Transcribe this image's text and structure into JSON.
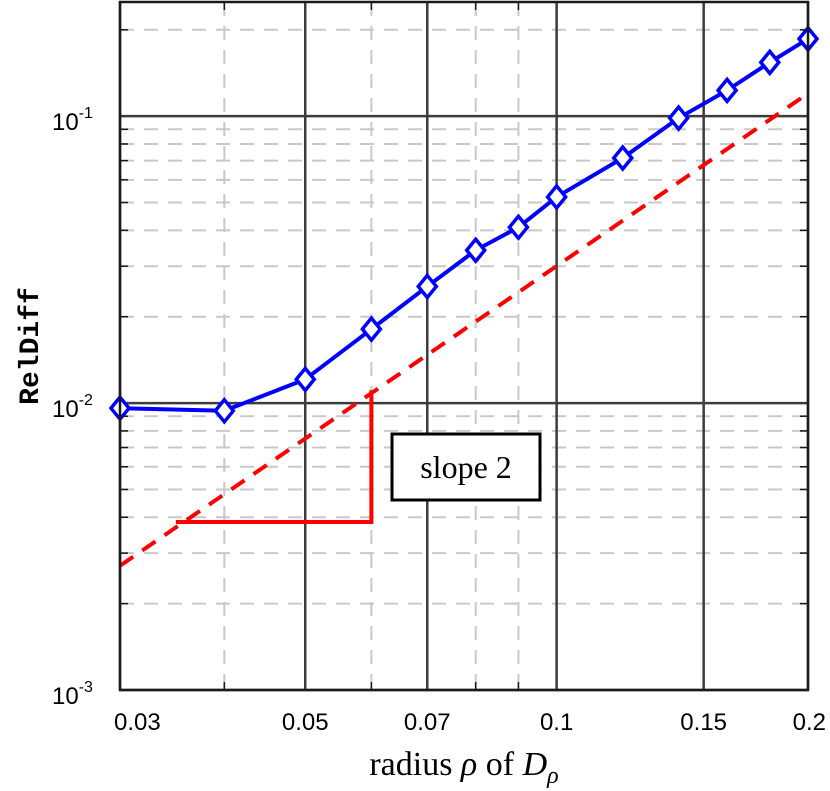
{
  "chart_data": {
    "type": "line",
    "x_scale": "log",
    "y_scale": "log",
    "xlim": [
      0.03,
      0.2
    ],
    "ylim": [
      0.001,
      0.25
    ],
    "grid": true,
    "xlabel_prefix": "radius ",
    "xlabel_rho": "ρ",
    "xlabel_mid": " of ",
    "xlabel_D": "D",
    "xlabel_sub": "ρ",
    "ylabel": "RelDiff",
    "x_ticks": [
      0.03,
      0.05,
      0.07,
      0.1,
      0.15,
      0.2
    ],
    "x_tick_labels": [
      "0.03",
      "0.05",
      "0.07",
      "0.1",
      "0.15",
      "0.2"
    ],
    "y_ticks": [
      0.001,
      0.01,
      0.1
    ],
    "y_tick_base": "10",
    "y_tick_exponents": [
      "-3",
      "-2",
      "-1"
    ],
    "series": [
      {
        "color": "#0000ff",
        "marker": "diamond",
        "style": "solid",
        "x": [
          0.03,
          0.04,
          0.05,
          0.06,
          0.07,
          0.08,
          0.09,
          0.1,
          0.12,
          0.14,
          0.16,
          0.18,
          0.2
        ],
        "y": [
          0.0096,
          0.0094,
          0.0121,
          0.0181,
          0.0255,
          0.0341,
          0.041,
          0.0523,
          0.0715,
          0.0985,
          0.123,
          0.154,
          0.186
        ]
      },
      {
        "color": "#ff0000",
        "style": "dashed",
        "x": [
          0.03,
          0.2
        ],
        "y": [
          0.00271,
          0.12
        ]
      }
    ],
    "slope_triangle": {
      "color": "#ff0000",
      "x": [
        0.035,
        0.06
      ],
      "y": [
        0.00385,
        0.0111
      ]
    },
    "annotation": "slope 2"
  }
}
